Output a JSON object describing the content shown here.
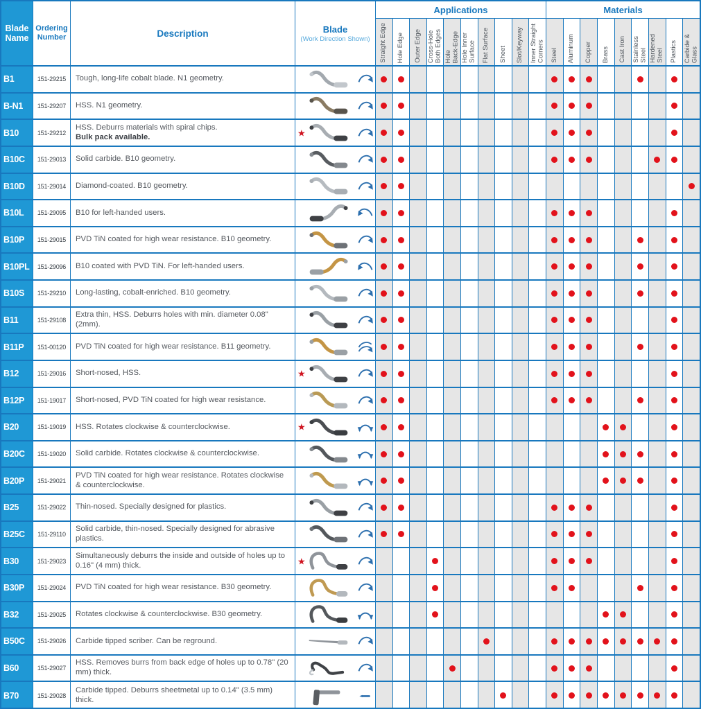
{
  "header": {
    "blade_name": "Blade Name",
    "ordering_number": "Ordering Number",
    "description": "Description",
    "blade": "Blade",
    "blade_sub": "(Work Direction Shown)",
    "applications_title": "Applications",
    "materials_title": "Materials",
    "applications": [
      "Straight Edge",
      "Hole Edge",
      "Outer Edge",
      "Cross-Hole\nBoth Edges",
      "Hole\nBack-Edge",
      "Hole Inner\nSurface",
      "Flat Surface",
      "Sheet",
      "Slot/Keyway",
      "Inner Straight\nCorners"
    ],
    "materials": [
      "Steel",
      "Aluminum",
      "Copper",
      "Brass",
      "Cast Iron",
      "Stainless\nSteel",
      "Hardened\nSteel",
      "Plastics",
      "Carbide &\nGlass"
    ]
  },
  "marker": {
    "star_symbol": "★",
    "star_color": "#cf1420",
    "dot_color": "#e2121b"
  },
  "colors": {
    "grid_blue": "#1878be",
    "name_cell_blue": "#1f98d5",
    "header_text_blue": "#1878be",
    "column_shade_gray": "#e6e6e6",
    "arrow_blue": "#2c6fae"
  },
  "rows": [
    {
      "name": "B1",
      "order": "151-29215",
      "desc": "Tough, long-life cobalt blade. N1 geometry.",
      "star": false,
      "blade": {
        "shape": "s",
        "color": "#a3a9af",
        "shank": "#c2c7cc",
        "mirror": false
      },
      "arrow": "cw",
      "apps": [
        0,
        1
      ],
      "mats": [
        0,
        1,
        2,
        5,
        7
      ]
    },
    {
      "name": "B-N1",
      "order": "151-29207",
      "desc": "HSS. N1 geometry.",
      "star": false,
      "blade": {
        "shape": "s",
        "color": "#8a7b63",
        "shank": "#58544c",
        "mirror": false
      },
      "arrow": "cw",
      "apps": [
        0,
        1
      ],
      "mats": [
        0,
        1,
        2,
        7
      ]
    },
    {
      "name": "B10",
      "order": "151-29212",
      "desc": "HSS. Deburrs materials with spiral chips.",
      "desc_bold": "Bulk pack available.",
      "star": true,
      "blade": {
        "shape": "s",
        "color": "#a8adb2",
        "shank": "#3e4044",
        "mirror": false
      },
      "arrow": "cw",
      "apps": [
        0,
        1
      ],
      "mats": [
        0,
        1,
        2,
        7
      ]
    },
    {
      "name": "B10C",
      "order": "151-29013",
      "desc": "Solid carbide. B10 geometry.",
      "star": false,
      "blade": {
        "shape": "s",
        "color": "#585c60",
        "shank": "#84898e",
        "mirror": false
      },
      "arrow": "cw",
      "apps": [
        0,
        1
      ],
      "mats": [
        0,
        1,
        2,
        6,
        7
      ]
    },
    {
      "name": "B10D",
      "order": "151-29014",
      "desc": "Diamond-coated. B10 geometry.",
      "star": false,
      "blade": {
        "shape": "s",
        "color": "#b6bbc0",
        "shank": "#a9aeb3",
        "mirror": false
      },
      "arrow": "cw",
      "apps": [
        0,
        1
      ],
      "mats": [
        8
      ]
    },
    {
      "name": "B10L",
      "order": "151-29095",
      "desc": "B10 for left-handed users.",
      "star": false,
      "blade": {
        "shape": "s",
        "color": "#a8adb2",
        "shank": "#3e4044",
        "mirror": true
      },
      "arrow": "ccw",
      "apps": [
        0,
        1
      ],
      "mats": [
        0,
        1,
        2,
        7
      ]
    },
    {
      "name": "B10P",
      "order": "151-29015",
      "desc": "PVD TiN coated for high wear resistance. B10 geometry.",
      "star": false,
      "blade": {
        "shape": "s",
        "color": "#c49545",
        "shank": "#6e7277",
        "mirror": false
      },
      "arrow": "cw",
      "apps": [
        0,
        1
      ],
      "mats": [
        0,
        1,
        2,
        5,
        7
      ]
    },
    {
      "name": "B10PL",
      "order": "151-29096",
      "desc": "B10 coated with PVD TiN. For left-handed users.",
      "star": false,
      "blade": {
        "shape": "s",
        "color": "#c49545",
        "shank": "#9aa0a5",
        "mirror": true
      },
      "arrow": "ccw",
      "apps": [
        0,
        1
      ],
      "mats": [
        0,
        1,
        2,
        5,
        7
      ]
    },
    {
      "name": "B10S",
      "order": "151-29210",
      "desc": "Long-lasting, cobalt-enriched. B10 geometry.",
      "star": false,
      "blade": {
        "shape": "s",
        "color": "#b4b9be",
        "shank": "#9aa0a5",
        "mirror": false
      },
      "arrow": "cw",
      "apps": [
        0,
        1
      ],
      "mats": [
        0,
        1,
        2,
        5,
        7
      ]
    },
    {
      "name": "B11",
      "order": "151-29108",
      "desc": "Extra thin, HSS. Deburrs holes with min. diameter 0.08\" (2mm).",
      "star": false,
      "blade": {
        "shape": "s",
        "color": "#9aa0a5",
        "shank": "#3e4044",
        "mirror": false
      },
      "arrow": "cw",
      "apps": [
        0,
        1
      ],
      "mats": [
        0,
        1,
        2,
        7
      ]
    },
    {
      "name": "B11P",
      "order": "151-00120",
      "desc": "PVD TiN coated for high wear resistance. B11 geometry.",
      "star": false,
      "blade": {
        "shape": "s",
        "color": "#c49545",
        "shank": "#9aa0a5",
        "mirror": false
      },
      "arrow": "double",
      "apps": [
        0,
        1
      ],
      "mats": [
        0,
        1,
        2,
        5,
        7
      ]
    },
    {
      "name": "B12",
      "order": "151-29016",
      "desc": "Short-nosed, HSS.",
      "star": true,
      "blade": {
        "shape": "s",
        "color": "#a8adb2",
        "shank": "#3e4044",
        "mirror": false
      },
      "arrow": "cw",
      "apps": [
        0,
        1
      ],
      "mats": [
        0,
        1,
        2,
        7
      ]
    },
    {
      "name": "B12P",
      "order": "151-19017",
      "desc": "Short-nosed, PVD TiN coated for high wear resistance.",
      "star": false,
      "blade": {
        "shape": "s",
        "color": "#b99a55",
        "shank": "#b3b8bd",
        "mirror": false
      },
      "arrow": "cw",
      "apps": [
        0,
        1
      ],
      "mats": [
        0,
        1,
        2,
        5,
        7
      ]
    },
    {
      "name": "B20",
      "order": "151-19019",
      "desc": "HSS. Rotates clockwise & counterclockwise.",
      "star": true,
      "blade": {
        "shape": "s",
        "color": "#4b4e52",
        "shank": "#3a3d41",
        "mirror": false
      },
      "arrow": "both",
      "apps": [
        0,
        1
      ],
      "mats": [
        3,
        4,
        7
      ]
    },
    {
      "name": "B20C",
      "order": "151-19020",
      "desc": "Solid carbide. Rotates clockwise & counterclockwise.",
      "star": false,
      "blade": {
        "shape": "s",
        "color": "#54585c",
        "shank": "#84898e",
        "mirror": false
      },
      "arrow": "both",
      "apps": [
        0,
        1
      ],
      "mats": [
        3,
        4,
        5,
        7
      ]
    },
    {
      "name": "B20P",
      "order": "151-29021",
      "desc": "PVD TiN coated for high wear resistance. Rotates clockwise & counterclockwise.",
      "star": false,
      "blade": {
        "shape": "s",
        "color": "#bf9a4f",
        "shank": "#b3b8bd",
        "mirror": false
      },
      "arrow": "both",
      "apps": [
        0,
        1
      ],
      "mats": [
        3,
        4,
        5,
        7
      ]
    },
    {
      "name": "B25",
      "order": "151-29022",
      "desc": "Thin-nosed. Specially designed for plastics.",
      "star": false,
      "blade": {
        "shape": "s",
        "color": "#9aa0a5",
        "shank": "#3e4044",
        "mirror": false
      },
      "arrow": "cw",
      "apps": [
        0,
        1
      ],
      "mats": [
        0,
        1,
        2,
        7
      ]
    },
    {
      "name": "B25C",
      "order": "151-29110",
      "desc": "Solid carbide, thin-nosed. Specially designed for abrasive plastics.",
      "star": false,
      "blade": {
        "shape": "s",
        "color": "#54585c",
        "shank": "#6e7277",
        "mirror": false
      },
      "arrow": "cw",
      "apps": [
        0,
        1
      ],
      "mats": [
        0,
        1,
        2,
        7
      ]
    },
    {
      "name": "B30",
      "order": "151-29023",
      "desc": "Simultaneously deburrs the inside and outside of holes up to 0.16\" (4 mm) thick.",
      "star": true,
      "blade": {
        "shape": "hook",
        "color": "#8f949a",
        "shank": "#3e4044",
        "mirror": false
      },
      "arrow": "cw",
      "apps": [
        3
      ],
      "mats": [
        0,
        1,
        2,
        7
      ]
    },
    {
      "name": "B30P",
      "order": "151-29024",
      "desc": "PVD TiN coated for high wear resistance. B30 geometry.",
      "star": false,
      "blade": {
        "shape": "hook",
        "color": "#c09a52",
        "shank": "#b3b8bd",
        "mirror": false
      },
      "arrow": "cw",
      "apps": [
        3
      ],
      "mats": [
        0,
        1,
        5,
        7
      ]
    },
    {
      "name": "B32",
      "order": "151-29025",
      "desc": "Rotates clockwise & counterclockwise. B30 geometry.",
      "star": false,
      "blade": {
        "shape": "hook",
        "color": "#54585c",
        "shank": "#3a3d41",
        "mirror": false
      },
      "arrow": "both",
      "apps": [
        3
      ],
      "mats": [
        3,
        4,
        7
      ]
    },
    {
      "name": "B50C",
      "order": "151-29026",
      "desc": "Carbide tipped scriber. Can be reground.",
      "star": false,
      "blade": {
        "shape": "scriber",
        "color": "#8f949a",
        "shank": "#b3b8bd",
        "mirror": false
      },
      "arrow": "cw",
      "apps": [
        6
      ],
      "mats": [
        0,
        1,
        2,
        3,
        4,
        5,
        6,
        7
      ]
    },
    {
      "name": "B60",
      "order": "151-29027",
      "desc": "HSS. Removes burrs from back edge of holes up to 0.78\" (20 mm) thick.",
      "star": false,
      "blade": {
        "shape": "zigzag",
        "color": "#3f4246",
        "shank": "#c2c7cc",
        "mirror": false
      },
      "arrow": "cw",
      "apps": [
        4
      ],
      "mats": [
        0,
        1,
        2,
        7
      ]
    },
    {
      "name": "B70",
      "order": "151-29028",
      "desc": "Carbide tipped. Deburrs sheetmetal up to 0.14\" (3.5 mm) thick.",
      "star": false,
      "blade": {
        "shape": "tbar",
        "color": "#8f949a",
        "shank": "#5a5e62",
        "mirror": false
      },
      "arrow": "dash",
      "apps": [
        7
      ],
      "mats": [
        0,
        1,
        2,
        3,
        4,
        5,
        6,
        7
      ]
    }
  ]
}
